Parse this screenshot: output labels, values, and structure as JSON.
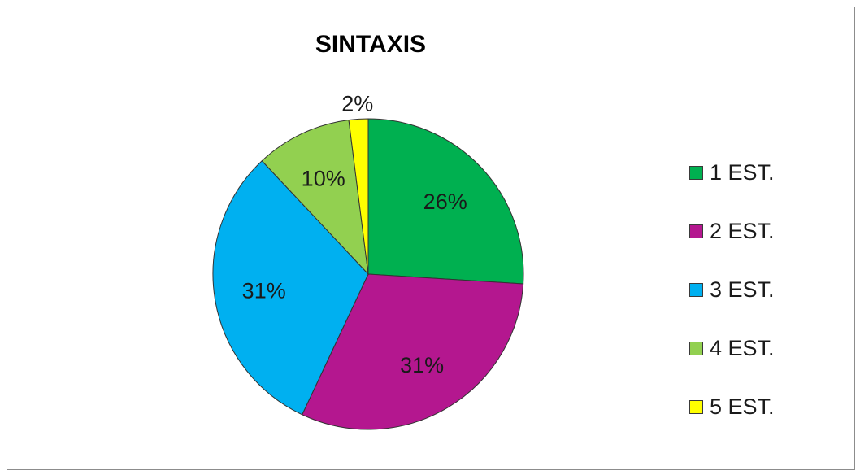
{
  "chart_data": {
    "type": "pie",
    "title": "SINTAXIS",
    "categories": [
      "1 EST.",
      "2 EST.",
      "3 EST.",
      "4 EST.",
      "5 EST."
    ],
    "values": [
      26,
      31,
      31,
      10,
      2
    ],
    "labels": [
      "26%",
      "31%",
      "31%",
      "10%",
      "2%"
    ],
    "colors": [
      "#00b050",
      "#b4178f",
      "#00b0f0",
      "#92d050",
      "#ffff00"
    ],
    "legend_position": "right"
  }
}
